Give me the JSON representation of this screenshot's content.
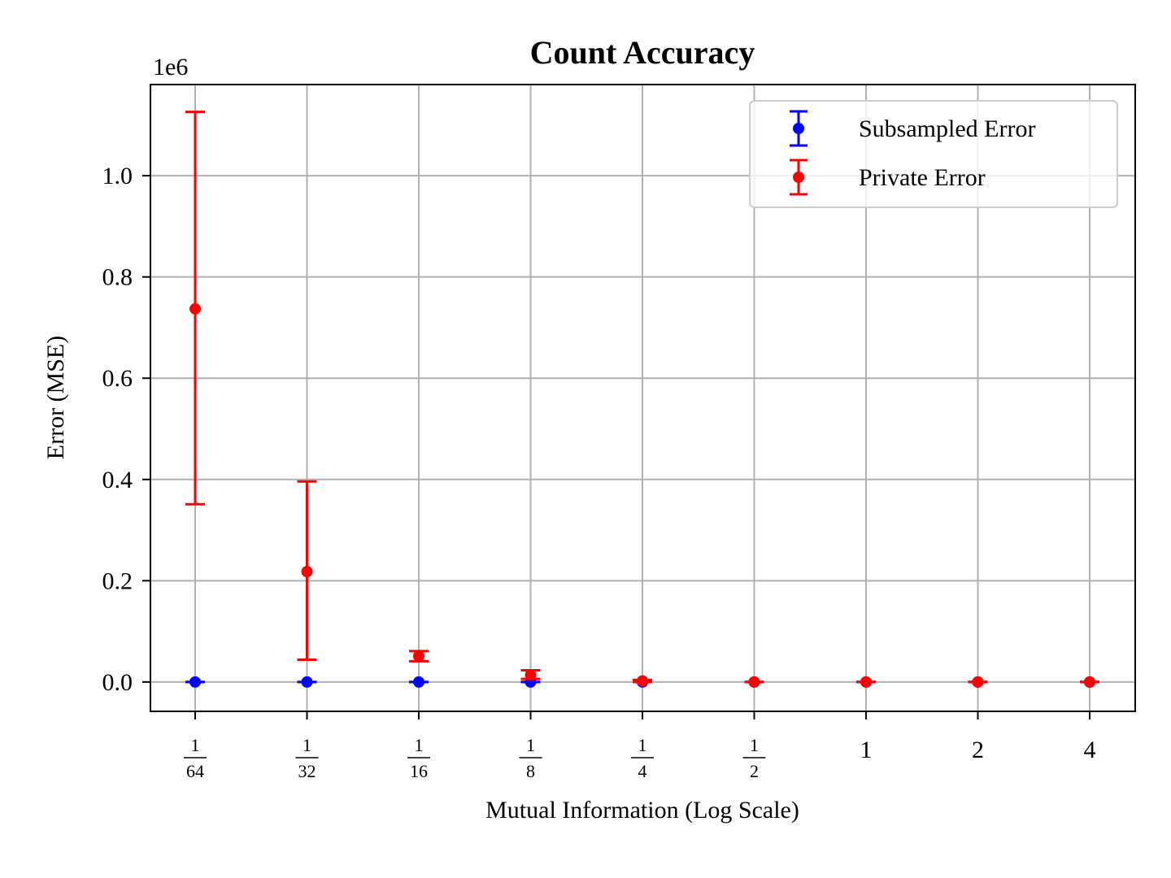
{
  "chart_data": {
    "type": "scatter",
    "title": "Count Accuracy",
    "xlabel": "Mutual Information (Log Scale)",
    "ylabel": "Error (MSE)",
    "y_offset_label": "1e6",
    "x_scale": "log2",
    "x": [
      0.015625,
      0.03125,
      0.0625,
      0.125,
      0.25,
      0.5,
      1,
      2,
      4
    ],
    "x_tick_labels": [
      {
        "num": "1",
        "den": "64"
      },
      {
        "num": "1",
        "den": "32"
      },
      {
        "num": "1",
        "den": "16"
      },
      {
        "num": "1",
        "den": "8"
      },
      {
        "num": "1",
        "den": "4"
      },
      {
        "num": "1",
        "den": "2"
      },
      {
        "text": "1"
      },
      {
        "text": "2"
      },
      {
        "text": "4"
      }
    ],
    "y_ticks": [
      0.0,
      0.2,
      0.4,
      0.6,
      0.8,
      1.0
    ],
    "y_tick_labels": [
      "0.0",
      "0.2",
      "0.4",
      "0.6",
      "0.8",
      "1.0"
    ],
    "ylim": [
      -0.058,
      1.18
    ],
    "grid": true,
    "legend_position": "top-right",
    "series": [
      {
        "name": "Subsampled Error",
        "color": "#0000ff",
        "values": [
          0.0,
          0.0,
          0.0,
          0.0,
          0.0,
          0.0,
          0.0,
          0.0,
          0.0
        ],
        "err_low": [
          0.0,
          0.0,
          0.0,
          0.0,
          0.0,
          0.0,
          0.0,
          0.0,
          0.0
        ],
        "err_high": [
          0.0,
          0.0,
          0.0,
          0.0,
          0.0,
          0.0,
          0.0,
          0.0,
          0.0
        ]
      },
      {
        "name": "Private Error",
        "color": "#ff0000",
        "values": [
          0.737,
          0.218,
          0.051,
          0.014,
          0.002,
          0.0,
          0.0,
          0.0,
          0.0
        ],
        "err_low": [
          0.351,
          0.044,
          0.041,
          0.006,
          0.0,
          0.0,
          0.0,
          0.0,
          0.0
        ],
        "err_high": [
          1.126,
          0.396,
          0.061,
          0.023,
          0.004,
          0.0,
          0.0,
          0.0,
          0.0
        ]
      }
    ]
  }
}
